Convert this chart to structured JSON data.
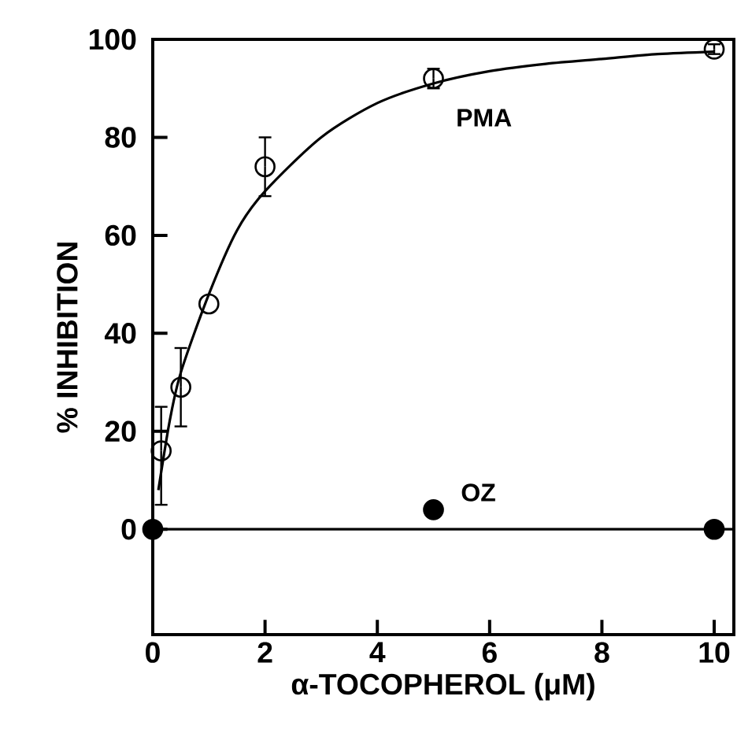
{
  "chart_data": {
    "type": "scatter",
    "xlabel": "α-TOCOPHEROL (μM)",
    "ylabel": "% INHIBITION",
    "xlim": [
      0,
      10.35
    ],
    "ylim": [
      -21.5,
      100
    ],
    "xticks": [
      0,
      2,
      4,
      6,
      8,
      10
    ],
    "yticks": [
      0,
      20,
      40,
      60,
      80,
      100
    ],
    "ref_lines": [
      {
        "axis": "y",
        "value": 0,
        "color": "#000000"
      }
    ],
    "series": [
      {
        "name": "PMA",
        "color": "#000000",
        "x": [
          0.15,
          0.5,
          1,
          2,
          5,
          10
        ],
        "values": [
          16,
          29,
          46,
          74,
          92,
          98
        ],
        "errors": [
          [
            5,
            25
          ],
          [
            21,
            37
          ],
          null,
          [
            68,
            80
          ],
          [
            90,
            94
          ],
          [
            97,
            99
          ]
        ]
      },
      {
        "type": "line",
        "marker": "none",
        "color": "#000000",
        "x": [
          0.1,
          0.3,
          0.5,
          1,
          1.5,
          2,
          3,
          4,
          5,
          6,
          7,
          8,
          9,
          10
        ],
        "values": [
          8,
          22,
          32,
          48,
          61,
          69,
          80,
          87,
          91,
          93.5,
          95,
          96,
          97,
          97.5
        ]
      },
      {
        "name": "OZ",
        "marker": "circle",
        "color": "#000000",
        "x": [
          0,
          5,
          10
        ],
        "values": [
          0,
          4,
          0
        ]
      }
    ]
  }
}
